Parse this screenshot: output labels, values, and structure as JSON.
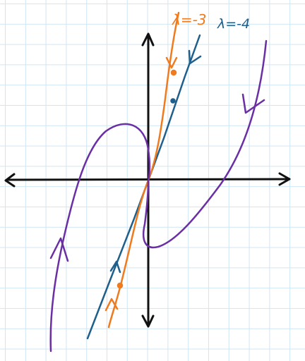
{
  "figure": {
    "labels": {
      "orange_curve": "λ=-3",
      "blue_line": "λ=-4"
    },
    "colors": {
      "grid": "#cfe6f3",
      "axes": "#111111",
      "orange": "#f07a1e",
      "blue": "#1f5f8b",
      "purple": "#6a2fa4"
    }
  }
}
